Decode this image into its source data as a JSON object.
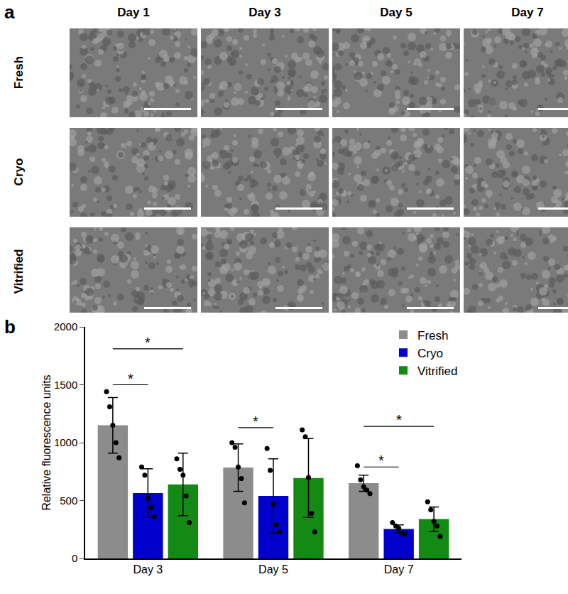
{
  "panel_a": {
    "label": "a",
    "columns": [
      "Day 1",
      "Day 3",
      "Day 5",
      "Day 7"
    ],
    "rows": [
      "Fresh",
      "Cryo",
      "Vitrified"
    ]
  },
  "panel_b": {
    "label": "b"
  },
  "chart_data": {
    "type": "bar",
    "categories": [
      "Day 3",
      "Day 5",
      "Day 7"
    ],
    "y_label": "Relative fluorescence units",
    "ylim": [
      0,
      2000
    ],
    "yticks": [
      0,
      500,
      1000,
      1500,
      2000
    ],
    "grid": false,
    "legend": "top-right",
    "series": [
      {
        "name": "Fresh",
        "color": "#8c8c8c",
        "values": [
          1150,
          785,
          650
        ],
        "error": [
          240,
          205,
          70
        ],
        "points": [
          [
            1440,
            1310,
            1150,
            1000,
            870
          ],
          [
            1000,
            960,
            790,
            690,
            480
          ],
          [
            800,
            680,
            620,
            590,
            560
          ]
        ]
      },
      {
        "name": "Cryo",
        "color": "#0000cc",
        "values": [
          565,
          540,
          255
        ],
        "error": [
          210,
          320,
          35
        ],
        "points": [
          [
            790,
            720,
            520,
            440,
            360
          ],
          [
            950,
            760,
            470,
            290,
            230
          ],
          [
            310,
            280,
            260,
            220,
            210
          ]
        ]
      },
      {
        "name": "Vitrified",
        "color": "#138a13",
        "values": [
          640,
          695,
          340
        ],
        "error": [
          270,
          340,
          105
        ],
        "points": [
          [
            860,
            770,
            720,
            540,
            310
          ],
          [
            1110,
            1050,
            700,
            390,
            230
          ],
          [
            490,
            420,
            320,
            280,
            190
          ]
        ]
      }
    ],
    "significance": [
      {
        "category": "Day 3",
        "from": "Fresh",
        "to": "Cryo",
        "y": 1500,
        "label": "*"
      },
      {
        "category": "Day 3",
        "from": "Fresh",
        "to": "Vitrified",
        "y": 1810,
        "label": "*"
      },
      {
        "category": "Day 5",
        "from": "Fresh",
        "to": "Cryo",
        "y": 1130,
        "label": "*"
      },
      {
        "category": "Day 7",
        "from": "Fresh",
        "to": "Cryo",
        "y": 790,
        "label": "*"
      },
      {
        "category": "Day 7",
        "from": "Fresh",
        "to": "Vitrified",
        "y": 1140,
        "label": "*"
      }
    ]
  }
}
